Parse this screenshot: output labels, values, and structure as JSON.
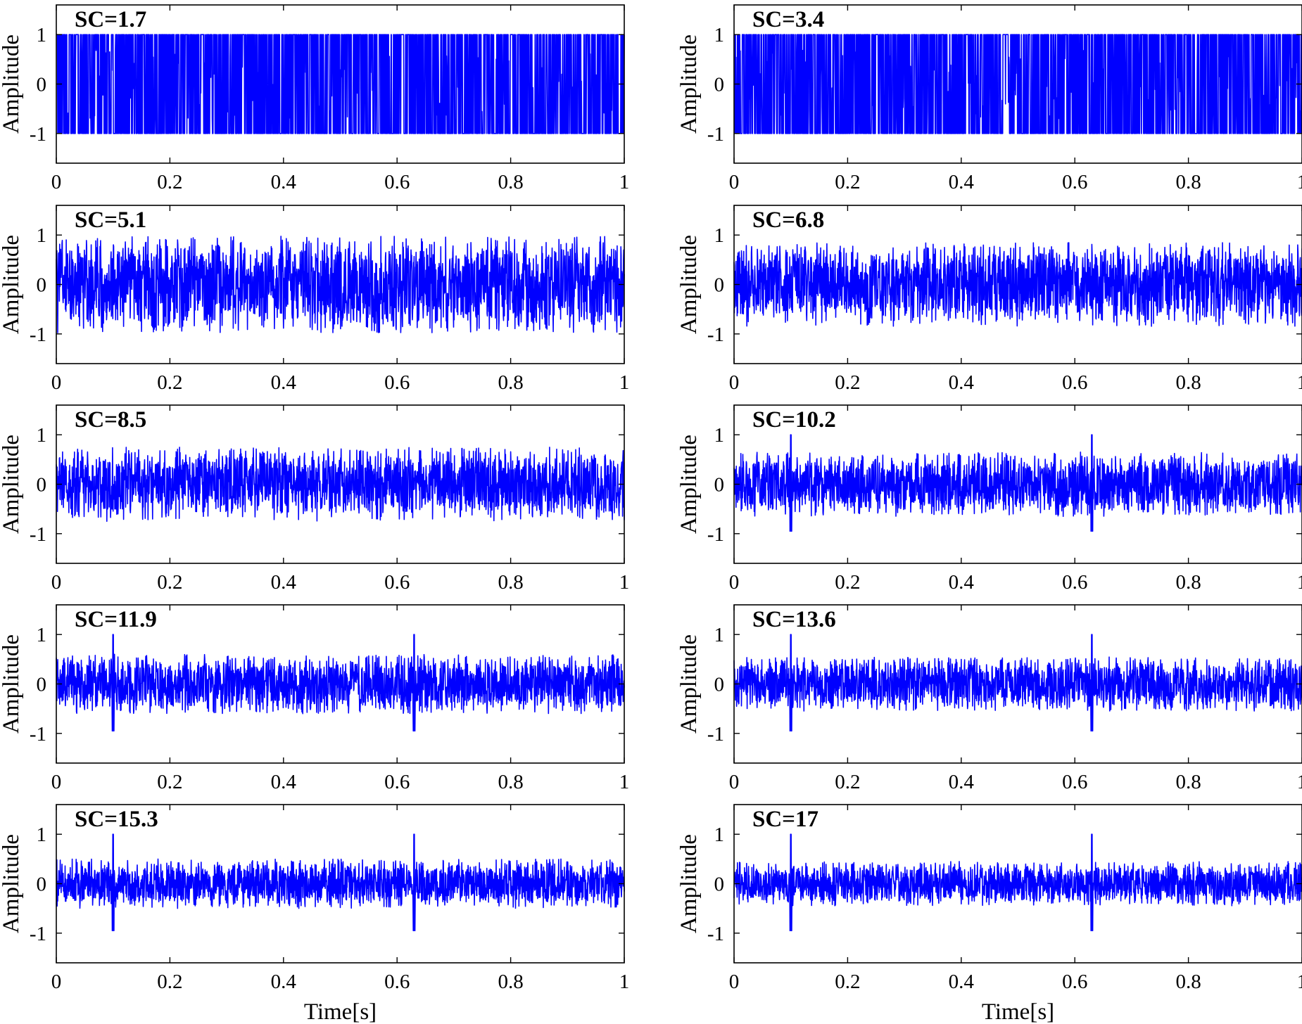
{
  "chart_data": {
    "type": "line",
    "panels": [
      {
        "label": "SC=1.7",
        "amplitude_envelope": 1.0,
        "shape": "saturated"
      },
      {
        "label": "SC=3.4",
        "amplitude_envelope": 1.0,
        "shape": "saturated"
      },
      {
        "label": "SC=5.1",
        "amplitude_envelope": 0.98,
        "shape": "dense"
      },
      {
        "label": "SC=6.8",
        "amplitude_envelope": 0.85,
        "shape": "dense"
      },
      {
        "label": "SC=8.5",
        "amplitude_envelope": 0.75,
        "shape": "dense"
      },
      {
        "label": "SC=10.2",
        "amplitude_envelope": 0.65,
        "shape": "impulsive",
        "peak_times": [
          0.1,
          0.63
        ],
        "peak_amplitude": 1.0
      },
      {
        "label": "SC=11.9",
        "amplitude_envelope": 0.6,
        "shape": "impulsive",
        "peak_times": [
          0.1,
          0.63
        ],
        "peak_amplitude": 1.0
      },
      {
        "label": "SC=13.6",
        "amplitude_envelope": 0.55,
        "shape": "impulsive",
        "peak_times": [
          0.1,
          0.63
        ],
        "peak_amplitude": 1.0
      },
      {
        "label": "SC=15.3",
        "amplitude_envelope": 0.5,
        "shape": "impulsive",
        "peak_times": [
          0.1,
          0.63
        ],
        "peak_amplitude": 1.0
      },
      {
        "label": "SC=17",
        "amplitude_envelope": 0.45,
        "shape": "impulsive",
        "peak_times": [
          0.1,
          0.63
        ],
        "peak_amplitude": 1.0
      }
    ],
    "xlabel": "Time[s]",
    "ylabel": "Amplitude",
    "xlim": [
      0,
      1
    ],
    "ylim": [
      -1.6,
      1.6
    ],
    "xticks": [
      "0",
      "0.2",
      "0.4",
      "0.6",
      "0.8",
      "1"
    ],
    "yticks": [
      "-1",
      "0",
      "1"
    ],
    "line_color": "#0000ff",
    "grid": false
  }
}
